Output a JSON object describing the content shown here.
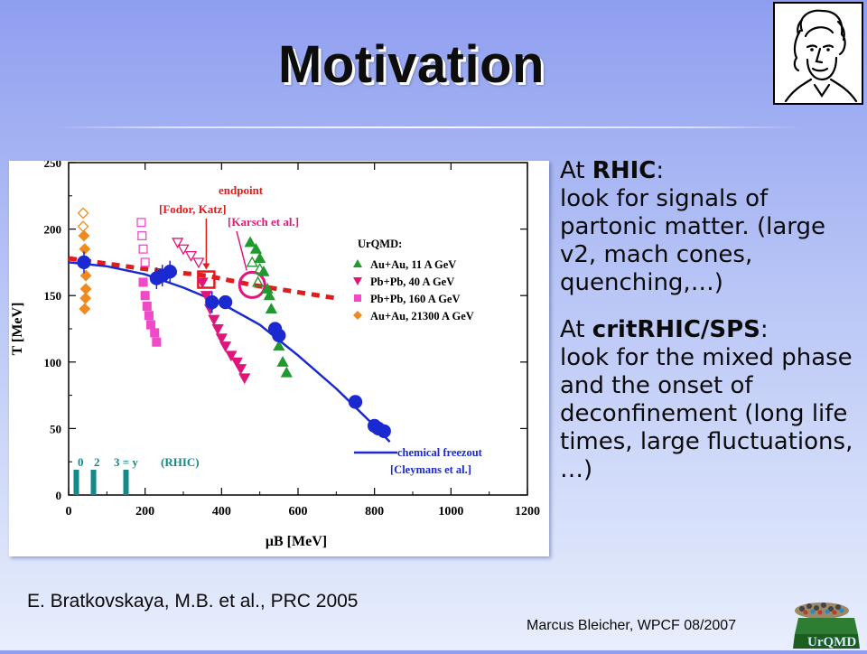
{
  "slide": {
    "title": "Motivation",
    "rhic_heading_pre": "At ",
    "rhic_heading_bold": "RHIC",
    "rhic_heading_post": ":",
    "rhic_text": "look for signals of partonic matter. (large v2, mach cones, quenching,…)",
    "sps_heading_pre": "At ",
    "sps_heading_bold": "critRHIC/SPS",
    "sps_heading_post": ":",
    "sps_text": "look for the mixed phase and the onset of deconfinement (long life times, large fluctuations, …)",
    "citation": "E. Bratkovskaya, M.B. et al., PRC 2005",
    "footer": "Marcus Bleicher, WPCF 08/2007",
    "logo_text": "UrQMD",
    "portrait_icon": "goethe-portrait-icon"
  },
  "chart_data": {
    "type": "scatter",
    "xlabel": "μB [MeV]",
    "ylabel": "T [MeV]",
    "xlim": [
      0,
      1200
    ],
    "ylim": [
      0,
      250
    ],
    "x_ticks": [
      "0",
      "200",
      "400",
      "600",
      "800",
      "1000",
      "1200"
    ],
    "y_ticks": [
      "0",
      "50",
      "100",
      "150",
      "200",
      "250"
    ],
    "legend_title": "UrQMD:",
    "legend_position": "right",
    "annotations": {
      "endpoint": "endpoint",
      "fodor": "[Fodor, Katz]",
      "karsch": "[Karsch et al.]",
      "freezeout_label": "chemical freezout",
      "freezeout_ref": "[Cleymans et al.]",
      "rapidity_0": "0",
      "rapidity_2": "2",
      "rapidity_3": "3 = y",
      "rapidity_rhic": "(RHIC)"
    },
    "colors": {
      "green": "#1f9a2e",
      "magenta": "#e0157a",
      "pink": "#f04ac8",
      "orange": "#f08a1e",
      "blue": "#1a2ad0",
      "red": "#e01c1c",
      "teal": "#138a8a"
    },
    "series": [
      {
        "name": "Au+Au, 11 A GeV",
        "marker": "triangle-up",
        "color": "#1f9a2e",
        "points": [
          [
            475,
            190
          ],
          [
            490,
            185
          ],
          [
            500,
            178
          ],
          [
            510,
            168
          ],
          [
            520,
            155
          ],
          [
            525,
            150
          ],
          [
            530,
            140
          ],
          [
            540,
            125
          ],
          [
            550,
            112
          ],
          [
            560,
            100
          ],
          [
            570,
            92
          ]
        ],
        "open_points": [
          [
            480,
            175
          ],
          [
            500,
            170
          ],
          [
            495,
            160
          ]
        ]
      },
      {
        "name": "Pb+Pb, 40 A GeV",
        "marker": "triangle-down",
        "color": "#e0157a",
        "points": [
          [
            350,
            160
          ],
          [
            360,
            150
          ],
          [
            370,
            140
          ],
          [
            380,
            132
          ],
          [
            390,
            125
          ],
          [
            400,
            118
          ],
          [
            410,
            112
          ],
          [
            425,
            105
          ],
          [
            440,
            100
          ],
          [
            450,
            95
          ],
          [
            460,
            88
          ]
        ],
        "open_points": [
          [
            285,
            190
          ],
          [
            300,
            185
          ],
          [
            320,
            180
          ],
          [
            340,
            175
          ]
        ]
      },
      {
        "name": "Pb+Pb, 160 A GeV",
        "marker": "square",
        "color": "#f04ac8",
        "points": [
          [
            195,
            160
          ],
          [
            200,
            150
          ],
          [
            205,
            142
          ],
          [
            210,
            135
          ],
          [
            215,
            128
          ],
          [
            225,
            122
          ],
          [
            230,
            115
          ]
        ],
        "open_points": [
          [
            190,
            205
          ],
          [
            192,
            195
          ],
          [
            195,
            185
          ],
          [
            200,
            175
          ]
        ]
      },
      {
        "name": "Au+Au, 21300 A GeV",
        "marker": "diamond",
        "color": "#f08a1e",
        "points": [
          [
            40,
            195
          ],
          [
            42,
            185
          ],
          [
            44,
            175
          ],
          [
            45,
            165
          ],
          [
            45,
            155
          ],
          [
            44,
            148
          ],
          [
            42,
            140
          ]
        ],
        "open_points": [
          [
            38,
            212
          ],
          [
            38,
            202
          ]
        ]
      },
      {
        "name": "chemical freezout data",
        "marker": "circle",
        "color": "#1a2ad0",
        "points": [
          [
            40,
            175
          ],
          [
            230,
            163
          ],
          [
            245,
            165
          ],
          [
            265,
            168
          ],
          [
            375,
            145
          ],
          [
            410,
            145
          ],
          [
            540,
            125
          ],
          [
            550,
            120
          ],
          [
            750,
            70
          ],
          [
            800,
            52
          ],
          [
            810,
            50
          ],
          [
            825,
            48
          ]
        ]
      }
    ],
    "freezeout_curve": [
      [
        0,
        175
      ],
      [
        100,
        172
      ],
      [
        200,
        166
      ],
      [
        300,
        156
      ],
      [
        400,
        144
      ],
      [
        500,
        128
      ],
      [
        600,
        105
      ],
      [
        700,
        80
      ],
      [
        800,
        52
      ],
      [
        840,
        40
      ]
    ],
    "crossover_line": [
      [
        0,
        178
      ],
      [
        200,
        170
      ],
      [
        360,
        165
      ],
      [
        480,
        158
      ],
      [
        700,
        148
      ]
    ],
    "critical_points": {
      "fodor": [
        360,
        162
      ],
      "karsch": [
        480,
        158
      ]
    },
    "rapidity_marks": [
      20,
      65,
      150
    ]
  }
}
